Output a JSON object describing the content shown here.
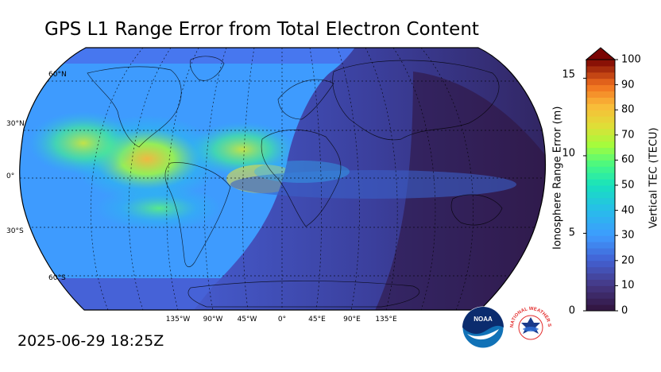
{
  "title": "GPS L1 Range Error from Total Electron Content",
  "timestamp": "2025-06-29 18:25Z",
  "map": {
    "projection": "Robinson",
    "lat_labels": [
      "60°N",
      "30°N",
      "0°",
      "30°S",
      "60°S"
    ],
    "lon_labels": [
      "135°W",
      "90°W",
      "45°W",
      "0°",
      "45°E",
      "90°E",
      "135°E"
    ],
    "colors": {
      "low": "#30123b",
      "mid": "#28bceb",
      "high": "#f9ba38",
      "gridline": "#000000"
    }
  },
  "colorbar": {
    "left_axis_title": "Ionosphere Range Error (m)",
    "right_axis_title": "Vertical TEC (TECU)",
    "left_ticks": [
      "0",
      "5",
      "10",
      "15"
    ],
    "right_ticks": [
      "0",
      "10",
      "20",
      "30",
      "40",
      "50",
      "60",
      "70",
      "80",
      "90",
      "100"
    ],
    "range_tecu": [
      0,
      100
    ],
    "range_m": [
      0,
      16.2
    ],
    "extend": "max"
  },
  "logos": {
    "noaa": "NOAA",
    "nws": "NATIONAL WEATHER SERVICE",
    "noaa_icon": "noaa-logo-icon",
    "nws_icon": "nws-logo-icon"
  }
}
